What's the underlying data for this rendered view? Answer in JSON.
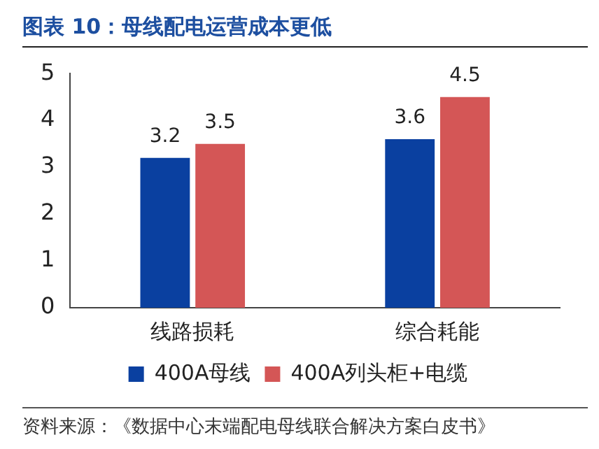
{
  "chart_data": {
    "type": "bar",
    "title": "图表 10：母线配电运营成本更低",
    "categories": [
      "线路损耗",
      "综合耗能"
    ],
    "series": [
      {
        "name": "400A母线",
        "color": "#0a40a0",
        "values": [
          3.2,
          3.6
        ]
      },
      {
        "name": "400A列头柜+电缆",
        "color": "#d45656",
        "values": [
          3.5,
          4.5
        ]
      }
    ],
    "ylim": [
      0,
      5
    ],
    "yticks": [
      0,
      1,
      2,
      3,
      4,
      5
    ],
    "grid": false,
    "legend": "bottom",
    "data_labels": true,
    "annotations": [
      "资料来源：《数据中心末端配电母线联合解决方案白皮书》"
    ]
  }
}
